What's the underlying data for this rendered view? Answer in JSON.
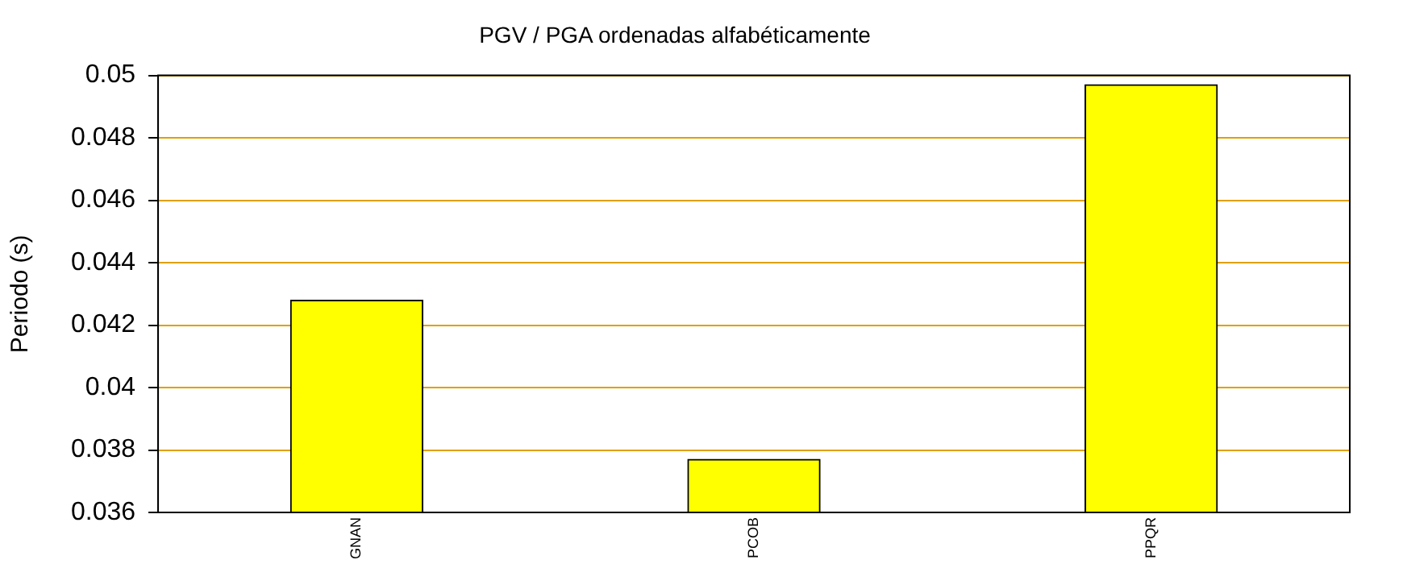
{
  "chart_data": {
    "type": "bar",
    "title": "PGV / PGA ordenadas alfabéticamente",
    "ylabel": "Periodo (s)",
    "categories": [
      "GNAN",
      "PCOB",
      "PPQR"
    ],
    "values": [
      0.0428,
      0.0377,
      0.0497
    ],
    "color": "#ffff00",
    "ylim": [
      0.036,
      0.05
    ],
    "yticks": [
      0.036,
      0.038,
      0.04,
      0.042,
      0.044,
      0.046,
      0.048,
      0.05
    ],
    "grid": "y",
    "legend": false
  }
}
